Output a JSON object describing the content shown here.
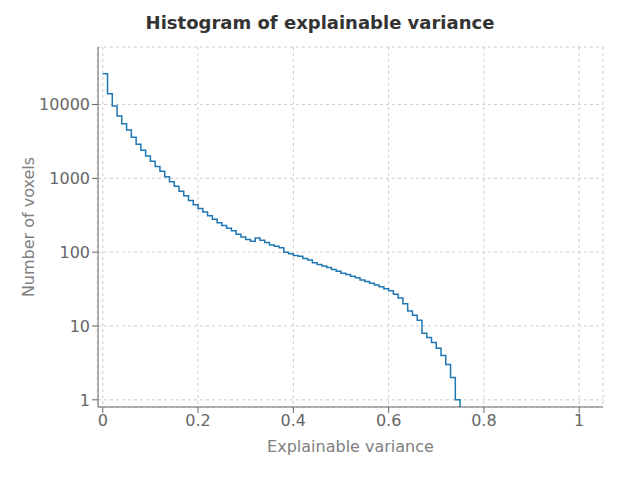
{
  "chart_data": {
    "type": "histogram",
    "title": "Histogram of explainable variance",
    "x_label": "Explainable variance",
    "y_label": "Number of voxels",
    "bins": [
      0.0,
      0.01,
      0.02,
      0.03,
      0.04,
      0.05,
      0.06,
      0.07,
      0.08,
      0.09,
      0.1,
      0.11,
      0.12,
      0.13,
      0.14,
      0.15,
      0.16,
      0.17,
      0.18,
      0.19,
      0.2,
      0.21,
      0.22,
      0.23,
      0.24,
      0.25,
      0.26,
      0.27,
      0.28,
      0.29,
      0.3,
      0.31,
      0.32,
      0.33,
      0.34,
      0.35,
      0.36,
      0.37,
      0.38,
      0.39,
      0.4,
      0.41,
      0.42,
      0.43,
      0.44,
      0.45,
      0.46,
      0.47,
      0.48,
      0.49,
      0.5,
      0.51,
      0.52,
      0.53,
      0.54,
      0.55,
      0.56,
      0.57,
      0.58,
      0.59,
      0.6,
      0.61,
      0.62,
      0.63,
      0.64,
      0.65,
      0.66,
      0.67,
      0.68,
      0.69,
      0.7,
      0.71,
      0.72,
      0.73,
      0.74,
      0.75,
      0.76,
      0.77,
      0.78,
      0.79,
      0.8,
      0.81,
      0.82,
      0.83,
      0.84,
      0.85,
      0.86,
      0.87,
      0.88,
      0.89,
      0.9,
      0.91,
      0.92,
      0.93,
      0.94,
      0.95,
      0.96,
      0.97,
      0.98,
      0.99,
      1.0
    ],
    "counts": [
      26000,
      14000,
      9500,
      7000,
      5500,
      4500,
      3600,
      2900,
      2400,
      2000,
      1700,
      1450,
      1250,
      1050,
      900,
      780,
      670,
      580,
      500,
      440,
      390,
      350,
      310,
      280,
      250,
      230,
      210,
      195,
      175,
      160,
      148,
      140,
      155,
      145,
      135,
      125,
      120,
      115,
      100,
      95,
      90,
      88,
      82,
      78,
      72,
      68,
      65,
      62,
      58,
      55,
      52,
      50,
      47,
      45,
      42,
      40,
      38,
      36,
      34,
      32,
      30,
      27,
      24,
      20,
      16,
      14,
      12,
      8,
      7,
      6,
      5,
      4,
      3,
      2,
      1,
      0,
      0,
      0,
      0,
      0,
      0,
      0,
      0,
      0,
      0,
      0,
      0,
      0,
      0,
      0,
      0,
      0,
      0,
      0,
      0,
      0,
      0,
      0,
      0,
      0
    ],
    "color": "#1f77b4",
    "xlim": [
      -0.01,
      1.05
    ],
    "ylim": [
      0.8,
      60000
    ],
    "xticks": [
      0.0,
      0.2,
      0.4,
      0.6,
      0.8,
      1.0
    ],
    "yticks": [
      1,
      10,
      100,
      1000,
      10000
    ],
    "log": "y",
    "grid": true
  }
}
